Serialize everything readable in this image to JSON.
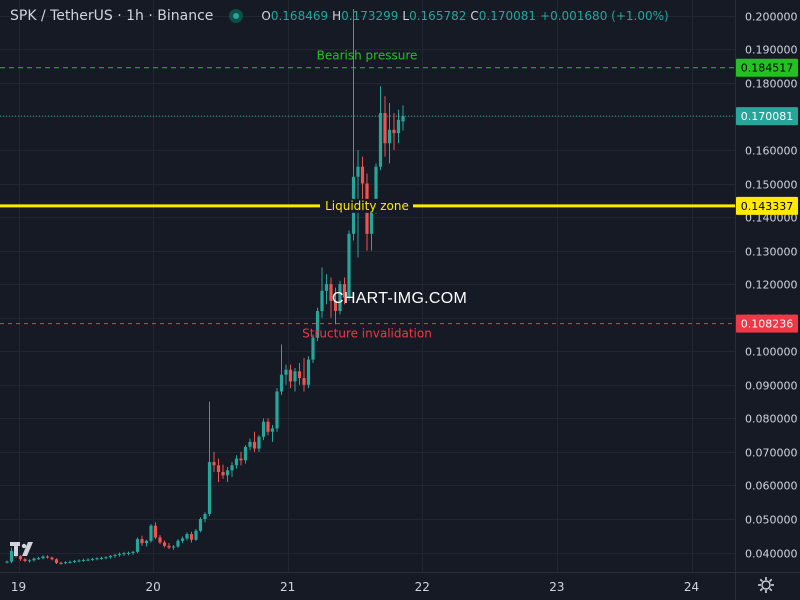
{
  "header": {
    "title": "SPK / TetherUS · 1h · Binance",
    "ohlc": {
      "o_label": "O",
      "o": "0.168469",
      "h_label": "H",
      "h": "0.173299",
      "l_label": "L",
      "l": "0.165782",
      "c_label": "C",
      "c": "0.170081",
      "change": "+0.001680 (+1.00%)"
    }
  },
  "watermark": "CHART-IMG.COM",
  "colors": {
    "background": "#161a25",
    "up": "#26a69a",
    "down": "#ef5350",
    "grid": "#232632",
    "axis_text": "#d1d4dc",
    "bearish": "#22c222",
    "liquidity": "#ffea00",
    "invalidation": "#f23645"
  },
  "chart_data": {
    "type": "candlestick",
    "symbol": "SPK / TetherUS",
    "interval": "1h",
    "exchange": "Binance",
    "y_axis": {
      "ticks": [
        "0.200000",
        "0.190000",
        "0.180000",
        "0.170000",
        "0.160000",
        "0.150000",
        "0.140000",
        "0.130000",
        "0.120000",
        "0.110000",
        "0.100000",
        "0.090000",
        "0.080000",
        "0.070000",
        "0.060000",
        "0.050000",
        "0.040000"
      ],
      "range": [
        0.0342,
        0.2047
      ],
      "scale": "linear",
      "position": "right"
    },
    "x_axis": {
      "ticks": [
        "19",
        "20",
        "21",
        "22",
        "23",
        "24"
      ]
    },
    "grid": true,
    "last_price": {
      "value": 0.170081,
      "label": "0.170081"
    },
    "levels": [
      {
        "name": "Bearish pressure",
        "value": 0.184517,
        "label": "0.184517",
        "style": "dashed"
      },
      {
        "name": "Liquidity zone",
        "value": 0.143337,
        "label": "0.143337",
        "style": "solid"
      },
      {
        "name": "Structure invalidation",
        "value": 0.108236,
        "label": "0.108236",
        "style": "dashed"
      }
    ],
    "candles": [
      [
        0.0371,
        0.0376,
        0.0368,
        0.0373
      ],
      [
        0.0373,
        0.0415,
        0.0368,
        0.0405
      ],
      [
        0.0405,
        0.041,
        0.0385,
        0.039
      ],
      [
        0.039,
        0.0392,
        0.0375,
        0.038
      ],
      [
        0.038,
        0.0384,
        0.0371,
        0.0375
      ],
      [
        0.0375,
        0.038,
        0.037,
        0.0377
      ],
      [
        0.0377,
        0.0385,
        0.0373,
        0.0382
      ],
      [
        0.0382,
        0.0387,
        0.0378,
        0.0383
      ],
      [
        0.0383,
        0.0392,
        0.038,
        0.0388
      ],
      [
        0.0388,
        0.0392,
        0.0382,
        0.0385
      ],
      [
        0.0385,
        0.0388,
        0.0377,
        0.038
      ],
      [
        0.038,
        0.0383,
        0.0366,
        0.0369
      ],
      [
        0.0369,
        0.0373,
        0.0364,
        0.0368
      ],
      [
        0.0368,
        0.0374,
        0.0365,
        0.0371
      ],
      [
        0.0371,
        0.0376,
        0.0367,
        0.0372
      ],
      [
        0.0372,
        0.0378,
        0.0369,
        0.0375
      ],
      [
        0.0375,
        0.038,
        0.0371,
        0.0376
      ],
      [
        0.0376,
        0.0382,
        0.0372,
        0.0378
      ],
      [
        0.0378,
        0.0383,
        0.0374,
        0.0379
      ],
      [
        0.0379,
        0.0384,
        0.0375,
        0.0381
      ],
      [
        0.0381,
        0.0386,
        0.0377,
        0.0383
      ],
      [
        0.0383,
        0.0388,
        0.0379,
        0.0384
      ],
      [
        0.0384,
        0.0389,
        0.038,
        0.0386
      ],
      [
        0.0386,
        0.0392,
        0.0382,
        0.039
      ],
      [
        0.039,
        0.0396,
        0.0385,
        0.0393
      ],
      [
        0.0393,
        0.04,
        0.0388,
        0.0396
      ],
      [
        0.0396,
        0.0402,
        0.039,
        0.0398
      ],
      [
        0.0398,
        0.0403,
        0.0392,
        0.0399
      ],
      [
        0.0399,
        0.0405,
        0.0393,
        0.0402
      ],
      [
        0.0402,
        0.0445,
        0.0398,
        0.044
      ],
      [
        0.044,
        0.045,
        0.042,
        0.0428
      ],
      [
        0.0428,
        0.0438,
        0.0418,
        0.0435
      ],
      [
        0.0435,
        0.0485,
        0.043,
        0.048
      ],
      [
        0.048,
        0.049,
        0.044,
        0.0445
      ],
      [
        0.0445,
        0.0452,
        0.0425,
        0.043
      ],
      [
        0.043,
        0.0436,
        0.0415,
        0.042
      ],
      [
        0.042,
        0.0428,
        0.041,
        0.0415
      ],
      [
        0.0415,
        0.0422,
        0.0408,
        0.0418
      ],
      [
        0.0418,
        0.044,
        0.0414,
        0.0435
      ],
      [
        0.0435,
        0.0448,
        0.0428,
        0.0442
      ],
      [
        0.0442,
        0.046,
        0.0436,
        0.0455
      ],
      [
        0.0455,
        0.0462,
        0.043,
        0.0438
      ],
      [
        0.0438,
        0.047,
        0.0435,
        0.0465
      ],
      [
        0.0465,
        0.0505,
        0.046,
        0.05
      ],
      [
        0.05,
        0.052,
        0.049,
        0.0515
      ],
      [
        0.0515,
        0.085,
        0.0508,
        0.067
      ],
      [
        0.067,
        0.07,
        0.064,
        0.066
      ],
      [
        0.066,
        0.068,
        0.061,
        0.064
      ],
      [
        0.064,
        0.0662,
        0.062,
        0.063
      ],
      [
        0.063,
        0.0655,
        0.061,
        0.0645
      ],
      [
        0.0645,
        0.067,
        0.0625,
        0.066
      ],
      [
        0.066,
        0.069,
        0.065,
        0.068
      ],
      [
        0.068,
        0.07,
        0.066,
        0.0675
      ],
      [
        0.0675,
        0.072,
        0.0665,
        0.0715
      ],
      [
        0.0715,
        0.074,
        0.0705,
        0.073
      ],
      [
        0.073,
        0.076,
        0.07,
        0.071
      ],
      [
        0.071,
        0.075,
        0.07,
        0.0745
      ],
      [
        0.0745,
        0.08,
        0.0735,
        0.079
      ],
      [
        0.079,
        0.08,
        0.075,
        0.076
      ],
      [
        0.076,
        0.078,
        0.073,
        0.077
      ],
      [
        0.077,
        0.089,
        0.076,
        0.088
      ],
      [
        0.088,
        0.102,
        0.087,
        0.093
      ],
      [
        0.093,
        0.096,
        0.09,
        0.0945
      ],
      [
        0.0945,
        0.096,
        0.089,
        0.091
      ],
      [
        0.091,
        0.095,
        0.088,
        0.094
      ],
      [
        0.094,
        0.0965,
        0.09,
        0.092
      ],
      [
        0.092,
        0.098,
        0.088,
        0.09
      ],
      [
        0.09,
        0.0985,
        0.089,
        0.0975
      ],
      [
        0.0975,
        0.105,
        0.0965,
        0.104
      ],
      [
        0.104,
        0.113,
        0.103,
        0.112
      ],
      [
        0.112,
        0.125,
        0.11,
        0.118
      ],
      [
        0.118,
        0.123,
        0.114,
        0.12
      ],
      [
        0.12,
        0.122,
        0.11,
        0.115
      ],
      [
        0.115,
        0.119,
        0.108,
        0.112
      ],
      [
        0.112,
        0.121,
        0.111,
        0.12
      ],
      [
        0.12,
        0.122,
        0.114,
        0.116
      ],
      [
        0.116,
        0.136,
        0.115,
        0.135
      ],
      [
        0.135,
        0.202,
        0.133,
        0.152
      ],
      [
        0.152,
        0.16,
        0.128,
        0.155
      ],
      [
        0.155,
        0.158,
        0.145,
        0.15
      ],
      [
        0.15,
        0.153,
        0.13,
        0.135
      ],
      [
        0.135,
        0.145,
        0.13,
        0.142
      ],
      [
        0.142,
        0.156,
        0.141,
        0.155
      ],
      [
        0.155,
        0.179,
        0.154,
        0.171
      ],
      [
        0.171,
        0.176,
        0.158,
        0.162
      ],
      [
        0.162,
        0.174,
        0.156,
        0.166
      ],
      [
        0.166,
        0.171,
        0.16,
        0.165
      ],
      [
        0.165,
        0.172,
        0.162,
        0.169
      ],
      [
        0.1685,
        0.1733,
        0.1658,
        0.1701
      ]
    ]
  }
}
